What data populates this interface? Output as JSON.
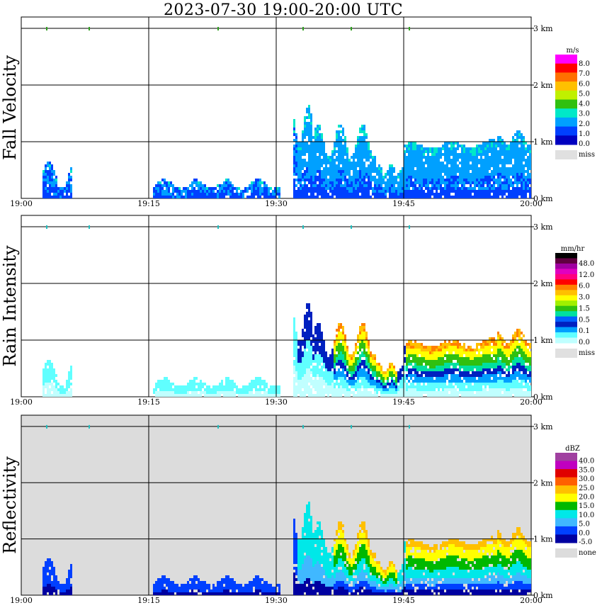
{
  "title": "2023-07-30  19:00-20:00 UTC",
  "chart_data": [
    {
      "type": "heatmap",
      "ylabel": "Fall Velocity",
      "x_ticks": [
        "19:00",
        "19:15",
        "19:30",
        "19:45",
        "20:00"
      ],
      "y_ticks": [
        "0 km",
        "1 km",
        "2 km",
        "3 km"
      ],
      "ylim_km": [
        0,
        3.2
      ],
      "background": "#ffffff",
      "colorbar": {
        "unit": "m/s",
        "labels": [
          "8.0",
          "7.0",
          "6.0",
          "5.0",
          "4.0",
          "3.0",
          "2.0",
          "1.0",
          "0.0"
        ],
        "colors": [
          "#ff00ff",
          "#ff0000",
          "#ff7000",
          "#ffc000",
          "#c0f000",
          "#30c010",
          "#00e8c8",
          "#00a0ff",
          "#0040ff",
          "#0000c0"
        ],
        "missing_label": "miss",
        "missing_color": "#e0e0e0"
      }
    },
    {
      "type": "heatmap",
      "ylabel": "Rain Intensity",
      "x_ticks": [
        "19:00",
        "19:15",
        "19:30",
        "19:45",
        "20:00"
      ],
      "y_ticks": [
        "0 km",
        "1 km",
        "2 km",
        "3 km"
      ],
      "ylim_km": [
        0,
        3.2
      ],
      "background": "#ffffff",
      "colorbar": {
        "unit": "mm/hr",
        "labels": [
          "48.0",
          "12.0",
          "6.0",
          "3.0",
          "1.5",
          "0.5",
          "0.1",
          "0.0"
        ],
        "colors": [
          "#000000",
          "#600040",
          "#a000a0",
          "#e000c0",
          "#ff0080",
          "#ff0000",
          "#ff8000",
          "#ffc000",
          "#ffff00",
          "#a0f000",
          "#30c010",
          "#00e0a0",
          "#0060ff",
          "#0020c0",
          "#00a0ff",
          "#60ffff",
          "#c0ffff"
        ],
        "missing_label": "miss",
        "missing_color": "#e0e0e0"
      }
    },
    {
      "type": "heatmap",
      "ylabel": "Reflectivity",
      "x_ticks": [
        "19:00",
        "19:15",
        "19:30",
        "19:45",
        "20:00"
      ],
      "y_ticks": [
        "0 km",
        "1 km",
        "2 km",
        "3 km"
      ],
      "ylim_km": [
        0,
        3.2
      ],
      "background": "#dcdcdc",
      "colorbar": {
        "unit": "dBZ",
        "labels": [
          "40.0",
          "35.0",
          "30.0",
          "25.0",
          "20.0",
          "15.0",
          "10.0",
          "5.0",
          "0.0",
          "-5.0"
        ],
        "colors": [
          "#a040a0",
          "#c000c0",
          "#e00000",
          "#ff6000",
          "#ffc000",
          "#ffff00",
          "#00b800",
          "#00e8e8",
          "#40b8ff",
          "#0040ff",
          "#0000a0"
        ],
        "missing_label": "none",
        "missing_color": "#dcdcdc"
      }
    }
  ]
}
